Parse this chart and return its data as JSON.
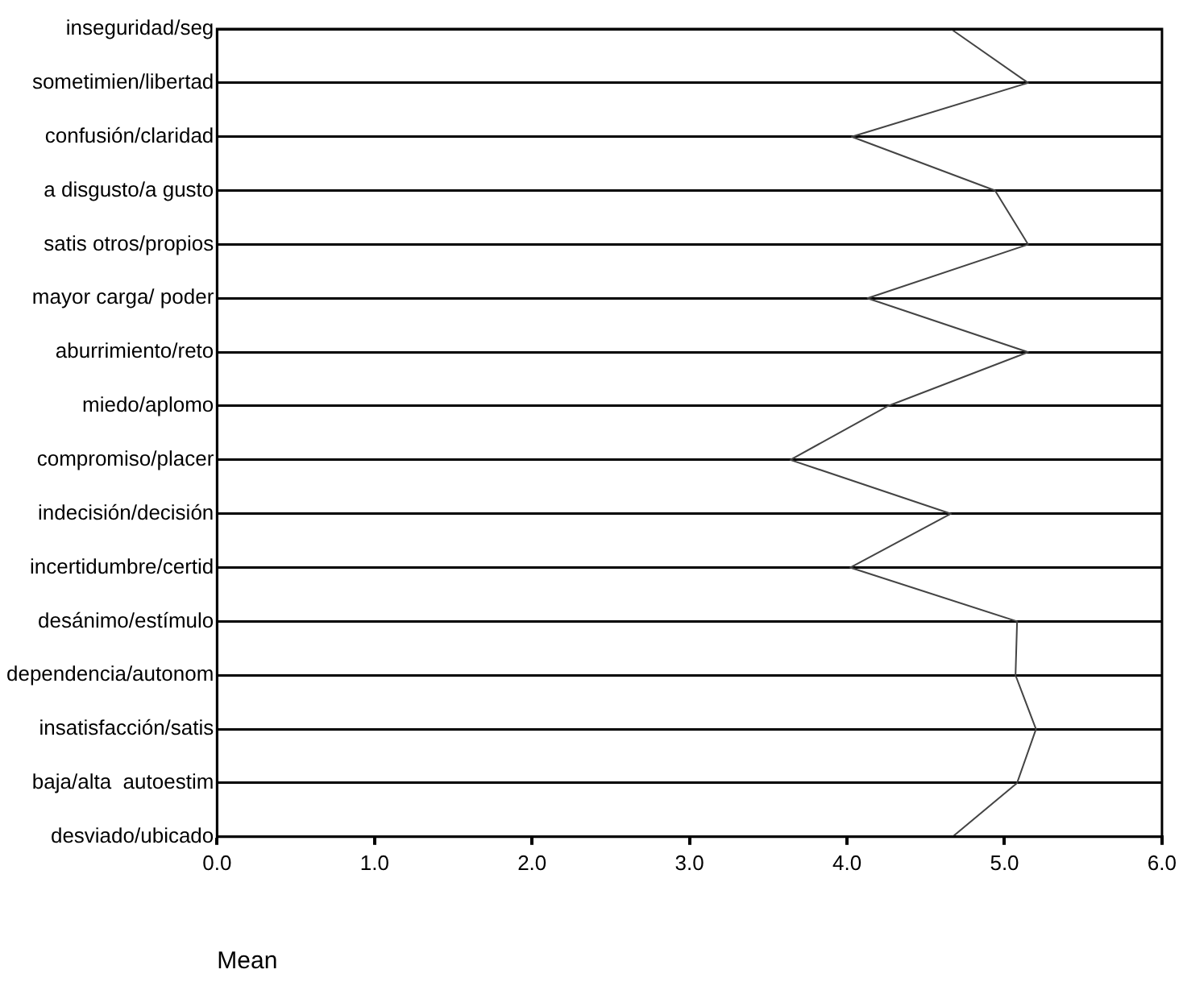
{
  "chart_data": {
    "type": "line",
    "orientation": "horizontal",
    "xlabel": "Mean",
    "categories": [
      "inseguridad/seg",
      "sometimien/libertad",
      "confusión/claridad",
      "a disgusto/a gusto",
      "satis otros/propios",
      "mayor carga/ poder",
      "aburrimiento/reto",
      "miedo/aplomo",
      "compromiso/placer",
      "indecisión/decisión",
      "incertidumbre/certid",
      "desánimo/estímulo",
      "dependencia/autonom",
      "insatisfacción/satis",
      "baja/alta  autoestim",
      "desviado/ubicado"
    ],
    "series": [
      {
        "color": "#444444",
        "values": [
          4.66,
          5.15,
          4.03,
          4.94,
          5.15,
          4.13,
          5.15,
          4.26,
          3.64,
          4.66,
          4.02,
          5.08,
          5.07,
          5.2,
          5.08,
          4.67
        ]
      }
    ],
    "xlim": [
      0,
      6
    ],
    "xticks": [
      {
        "value": 0,
        "label": "0.0"
      },
      {
        "value": 1,
        "label": "1.0"
      },
      {
        "value": 2,
        "label": "2.0"
      },
      {
        "value": 3,
        "label": "3.0"
      },
      {
        "value": 4,
        "label": "4.0"
      },
      {
        "value": 5,
        "label": "5.0"
      },
      {
        "value": 6,
        "label": "6.0"
      }
    ],
    "grid": "y",
    "legend": false,
    "marker": "none",
    "line_style": "solid"
  }
}
